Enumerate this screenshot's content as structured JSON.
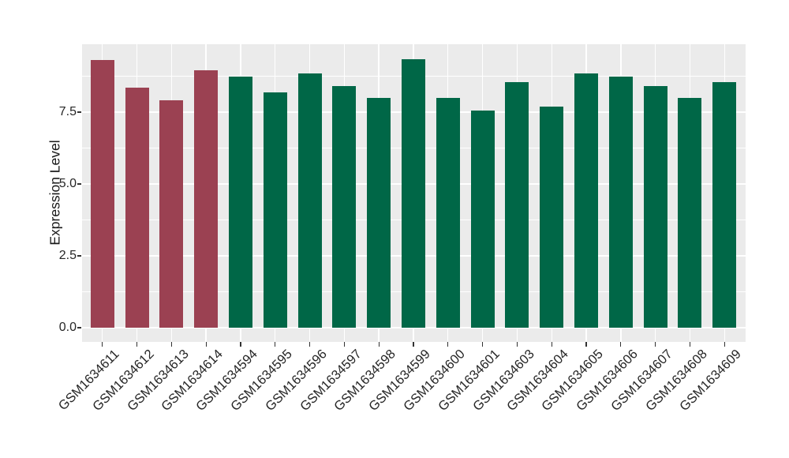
{
  "chart_data": {
    "type": "bar",
    "title": "",
    "xlabel": "",
    "ylabel": "Expression Level",
    "categories": [
      "GSM1634611",
      "GSM1634612",
      "GSM1634613",
      "GSM1634614",
      "GSM1634594",
      "GSM1634595",
      "GSM1634596",
      "GSM1634597",
      "GSM1634598",
      "GSM1634599",
      "GSM1634600",
      "GSM1634601",
      "GSM1634603",
      "GSM1634604",
      "GSM1634605",
      "GSM1634606",
      "GSM1634607",
      "GSM1634608",
      "GSM1634609"
    ],
    "values": [
      9.3,
      8.35,
      7.9,
      8.95,
      8.75,
      8.2,
      8.85,
      8.4,
      8.0,
      9.35,
      8.0,
      7.55,
      8.55,
      7.7,
      8.85,
      8.75,
      8.4,
      8.0,
      8.55
    ],
    "bar_groups": [
      "highlight",
      "highlight",
      "highlight",
      "highlight",
      "default",
      "default",
      "default",
      "default",
      "default",
      "default",
      "default",
      "default",
      "default",
      "default",
      "default",
      "default",
      "default",
      "default",
      "default"
    ],
    "palette": {
      "highlight": "#9B4152",
      "default": "#006747"
    },
    "yticks": [
      0,
      2.5,
      5,
      7.5
    ],
    "ytick_labels": [
      "0.0",
      "2.5",
      "5.0",
      "7.5"
    ],
    "ylim": [
      0,
      9.9
    ],
    "x_label_rotation_deg": 45,
    "grid": "major+minor horizontal, major vertical at bar centers",
    "legend": "none",
    "panel_bg": "#EBEBEB",
    "grid_color": "#FFFFFF",
    "tick_color": "#333333",
    "text_color": "#262626"
  }
}
